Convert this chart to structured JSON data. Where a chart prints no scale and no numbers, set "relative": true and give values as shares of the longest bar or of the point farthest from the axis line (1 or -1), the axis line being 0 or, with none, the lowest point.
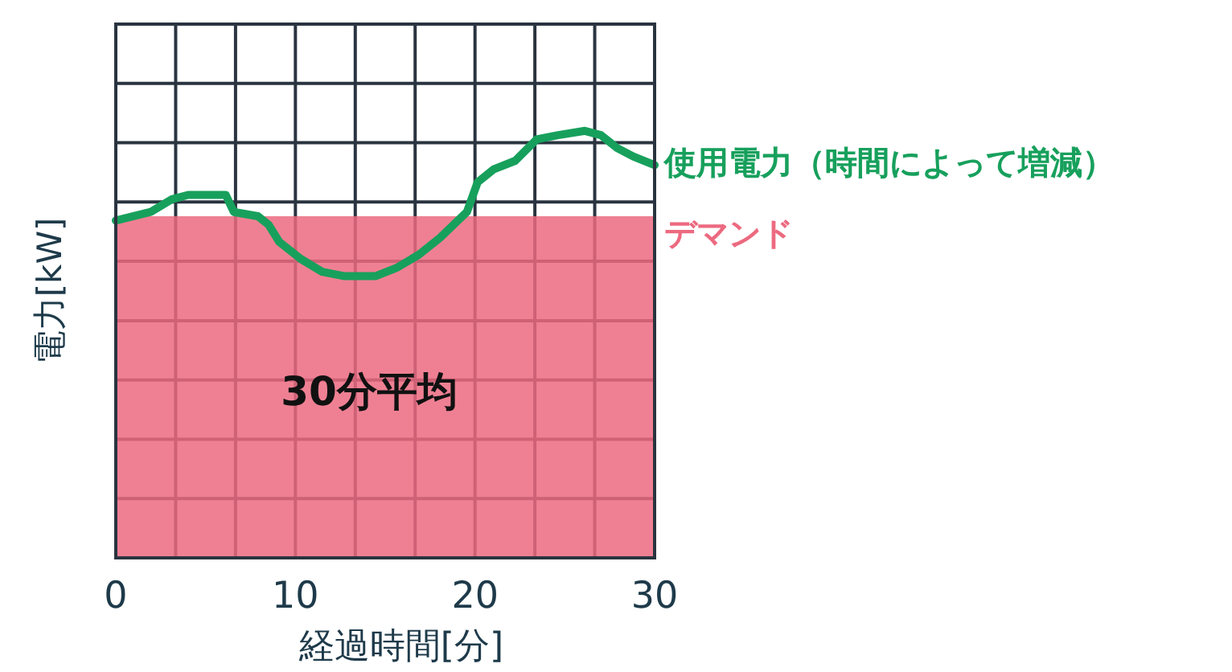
{
  "chart_data": {
    "type": "line",
    "xlabel": "経過時間[分]",
    "ylabel": "電力[kW]",
    "relative": true,
    "xlim": [
      0,
      30
    ],
    "xticks": [
      0,
      10,
      20,
      30
    ],
    "grid": true,
    "annotations": [
      "30分平均"
    ],
    "series": [
      {
        "name": "使用電力（時間によって増減）",
        "color": "#17a05c",
        "x": [
          0,
          1.94,
          3.13,
          4.03,
          6.12,
          6.57,
          7.91,
          8.51,
          9.1,
          10.3,
          11.49,
          12.69,
          14.48,
          15.67,
          16.87,
          18.06,
          19.55,
          20.15,
          21.04,
          22.24,
          23.43,
          24.63,
          26.12,
          27.01,
          27.91,
          28.81,
          30
        ],
        "values": [
          0.79,
          0.81,
          0.84,
          0.85,
          0.85,
          0.81,
          0.8,
          0.78,
          0.74,
          0.7,
          0.67,
          0.66,
          0.66,
          0.68,
          0.71,
          0.75,
          0.81,
          0.88,
          0.91,
          0.93,
          0.98,
          0.99,
          1,
          0.99,
          0.96,
          0.94,
          0.92
        ]
      },
      {
        "name": "デマンド",
        "type": "area",
        "color": "#ec6a80",
        "x": [
          0,
          30
        ],
        "values": [
          0.8,
          0.8
        ]
      }
    ]
  }
}
